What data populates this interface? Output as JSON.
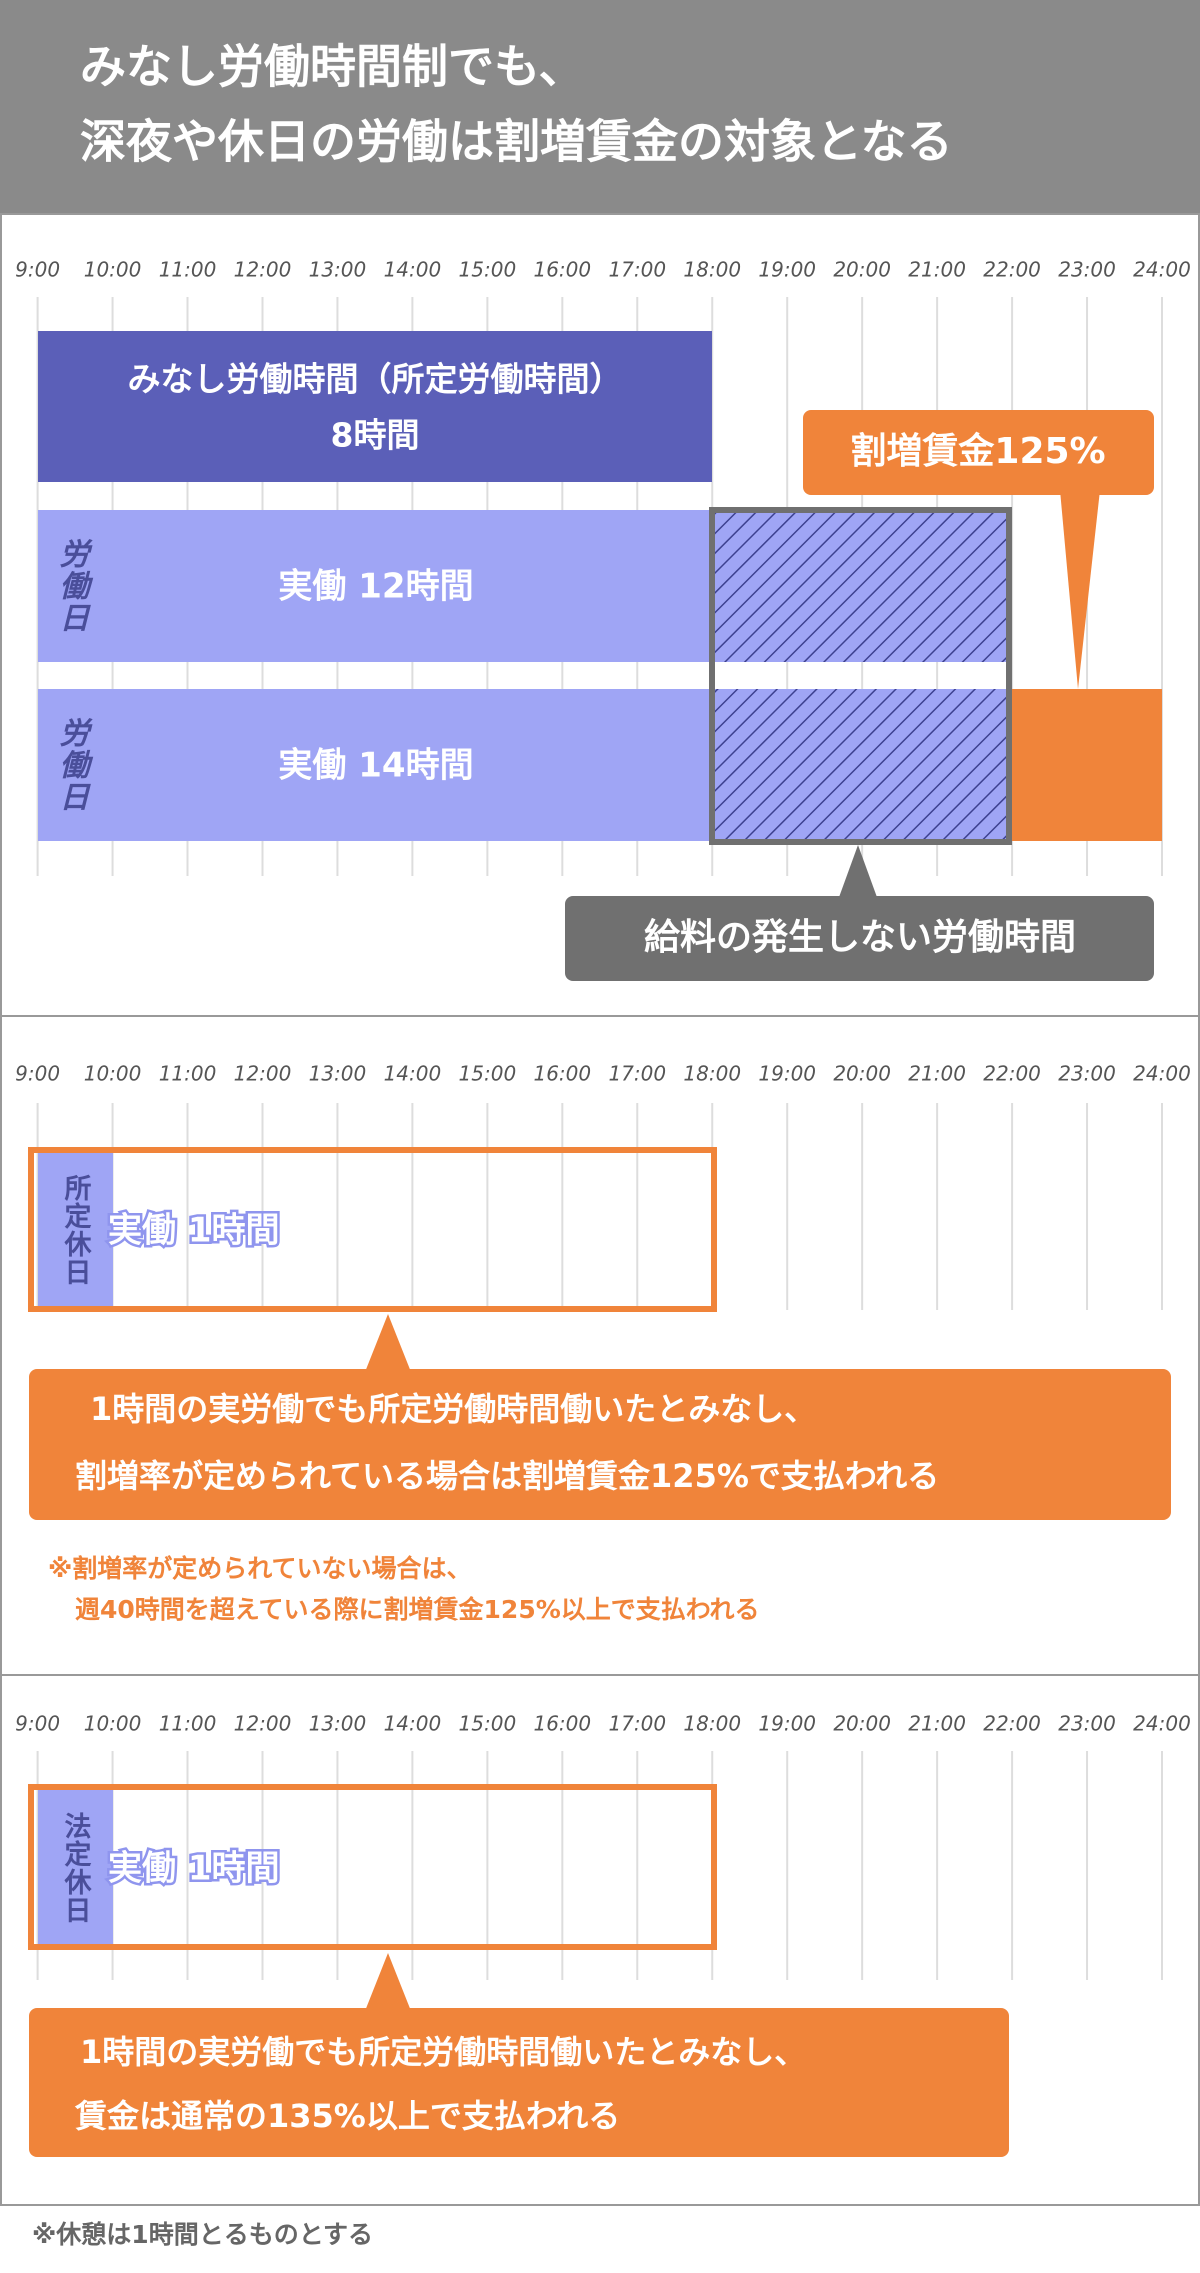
{
  "header": {
    "title_lines": [
      "みなし労働時間制でも、",
      "深夜や休日の労働は割増賃金の対象となる"
    ]
  },
  "time_labels": [
    "9:00",
    "10:00",
    "11:00",
    "12:00",
    "13:00",
    "14:00",
    "15:00",
    "16:00",
    "17:00",
    "18:00",
    "19:00",
    "20:00",
    "21:00",
    "22:00",
    "23:00",
    "24:00"
  ],
  "panel1": {
    "deemed_bar": {
      "label": "みなし労働時間（所定労働時間）",
      "hours": "8時間"
    },
    "rows": [
      {
        "side": "労働日",
        "label": "実働 12時間"
      },
      {
        "side": "労働日",
        "label": "実働 14時間"
      }
    ],
    "premium_callout": "割増賃金125%",
    "unpaid_callout": "給料の発生しない労働時間"
  },
  "panel2": {
    "side": "所定休日",
    "label": "実働 1時間",
    "callout_lines": [
      "1時間の実労働でも所定労働時間働いたとみなし、",
      "割増率が定められている場合は割増賃金125%で支払われる"
    ],
    "note_lines": [
      "※割増率が定められていない場合は、",
      "週40時間を超えている際に割増賃金125%以上で支払われる"
    ]
  },
  "panel3": {
    "side": "法定休日",
    "label": "実働 1時間",
    "callout_lines": [
      "1時間の実労働でも所定労働時間働いたとみなし、",
      "賃金は通常の135%以上で支払われる"
    ]
  },
  "footnote": "※休憩は1時間とるものとする"
}
